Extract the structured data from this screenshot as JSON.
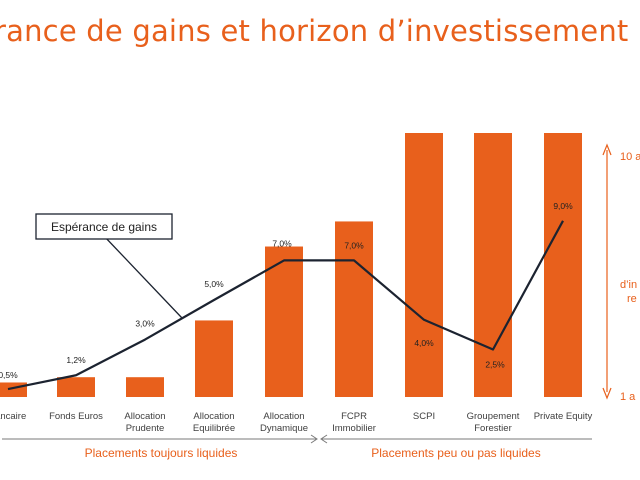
{
  "title": "rance de gains et horizon d’investissement",
  "chart_data": {
    "type": "bar",
    "categories": [
      [
        "bancaire"
      ],
      [
        "Fonds Euros"
      ],
      [
        "Allocation",
        "Prudente"
      ],
      [
        "Allocation",
        "Equilibrée"
      ],
      [
        "Allocation",
        "Dynamique"
      ],
      [
        "FCPR",
        "Immobilier"
      ],
      [
        "SCPI"
      ],
      [
        "Groupement",
        "Forestier"
      ],
      [
        "Private Equity"
      ]
    ],
    "series": [
      {
        "kind": "bar",
        "color": "#e8601c",
        "values": [
          0.55,
          0.75,
          0.75,
          2.9,
          5.7,
          6.65,
          10,
          10,
          10
        ]
      },
      {
        "kind": "line",
        "color": "#1c2330",
        "values": [
          0.5,
          1.2,
          3.0,
          5.0,
          7.0,
          7.0,
          4.0,
          2.5,
          9.0
        ],
        "labels": [
          "0,5%",
          "1,2%",
          "3,0%",
          "5,0%",
          "7,0%",
          "7,0%",
          "4,0%",
          "2,5%",
          "9,0%"
        ]
      }
    ],
    "callout": "Espérance de gains",
    "groups": [
      "Placements toujours liquides",
      "Placements peu ou pas liquides"
    ],
    "right_axis": {
      "top": "10 a",
      "middle": [
        "d’in",
        "re"
      ],
      "bottom": "1 a"
    },
    "grid": false
  }
}
